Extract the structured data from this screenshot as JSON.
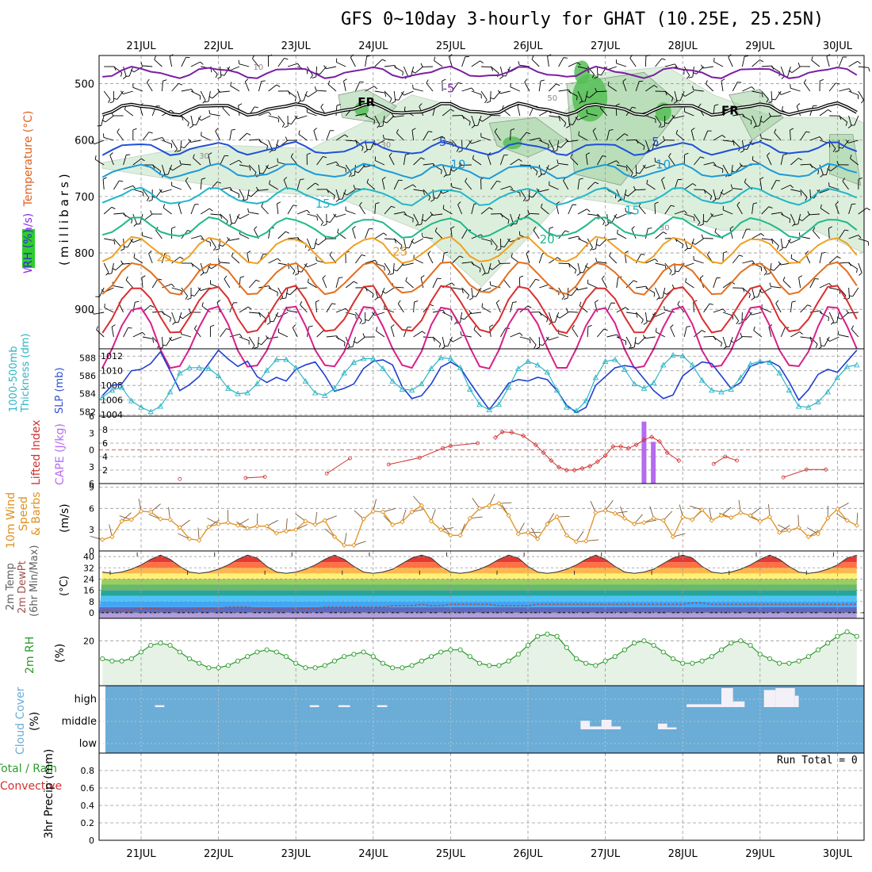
{
  "title": "GFS 0~10day 3-hourly for GHAT (10.25E, 25.25N)",
  "run_total": "Run Total = 0",
  "colors": {
    "rh_fill": "#dcefdc",
    "rh_mid": "#9fcf9f",
    "rh_high": "#55c055",
    "rh_dark": "#2ecc2e",
    "slp": "#1f3fcf",
    "thickness": "#2fb5c5",
    "lifted": "#d23030",
    "cape": "#b56bf0",
    "wind10": "#e09020",
    "temp": "#606060",
    "dew": "#a05050",
    "rh2m": "#2d9a2d",
    "cloud": "#6badd6",
    "grid": "#999999"
  },
  "chart_data": [
    {
      "type": "line",
      "panel": "Upper-air time section",
      "ylabel_lines": [
        "Wind (m/s)",
        "Temperature (°C)",
        "RH (%)",
        "(millibars)"
      ],
      "x_ticks": [
        "21JUL",
        "22JUL",
        "23JUL",
        "24JUL",
        "25JUL",
        "26JUL",
        "27JUL",
        "28JUL",
        "29JUL",
        "30JUL"
      ],
      "y_ticks": [
        500,
        600,
        700,
        800,
        900
      ],
      "ylim": [
        450,
        970
      ],
      "isotherm_labels": [
        {
          "text": "-5",
          "day": 3.9,
          "p": 515
        },
        {
          "text": "FR",
          "day": 2.8,
          "p": 540
        },
        {
          "text": "FR",
          "day": 7.5,
          "p": 555
        },
        {
          "text": "5",
          "day": 3.85,
          "p": 610
        },
        {
          "text": "5",
          "day": 6.6,
          "p": 610
        },
        {
          "text": "10",
          "day": 4.0,
          "p": 650
        },
        {
          "text": "10",
          "day": 6.65,
          "p": 650
        },
        {
          "text": "15",
          "day": 2.25,
          "p": 720
        },
        {
          "text": "15",
          "day": 6.25,
          "p": 732
        },
        {
          "text": "20",
          "day": 5.15,
          "p": 783
        },
        {
          "text": "25",
          "day": 0.2,
          "p": 815
        },
        {
          "text": "25",
          "day": 3.25,
          "p": 805
        }
      ],
      "rh_labels": [
        {
          "text": "10",
          "day": 1.45,
          "p": 475
        },
        {
          "text": "50",
          "day": 5.25,
          "p": 530
        },
        {
          "text": "30",
          "day": 0.75,
          "p": 633
        },
        {
          "text": "30",
          "day": 3.1,
          "p": 613
        },
        {
          "text": "30",
          "day": 6.7,
          "p": 760
        }
      ]
    },
    {
      "type": "line",
      "panel": "Thickness / SLP",
      "ylabel_lines": [
        "1000-500mb",
        "Thickness (dm)",
        "SLP (mb)"
      ],
      "x_ticks": [
        "21JUL",
        "22JUL",
        "23JUL",
        "24JUL",
        "25JUL",
        "26JUL",
        "27JUL",
        "28JUL",
        "29JUL",
        "30JUL"
      ],
      "left_ticks": [
        582,
        584,
        586,
        588
      ],
      "right_ticks": [
        1004,
        1006,
        1008,
        1010,
        1012
      ],
      "left_range": [
        581.5,
        589
      ],
      "right_range": [
        1003.8,
        1013
      ],
      "series": [
        {
          "name": "SLP (mb)",
          "axis": "right",
          "values": [
            1006.6,
            1008,
            1008.2,
            1010,
            1010.2,
            1011,
            1012.6,
            1010,
            1007.3,
            1008.1,
            1009.2,
            1011,
            1012.8,
            1011.6,
            1010.6,
            1011.3,
            1009.2,
            1008.4,
            1009.1,
            1008.6,
            1010.2,
            1010.8,
            1011.2,
            1009.4,
            1007.2,
            1007.6,
            1008.2,
            1010.3,
            1011.3,
            1011.5,
            1010.8,
            1007.8,
            1006.2,
            1006.6,
            1008.2,
            1010.5,
            1011.2,
            1010.4,
            1008.4,
            1006.5,
            1004.7,
            1006.4,
            1008.3,
            1008.8,
            1008.6,
            1009.1,
            1008.8,
            1007.3,
            1005.3,
            1004.3,
            1005,
            1008,
            1009.2,
            1010.4,
            1010.7,
            1010.5,
            1008.9,
            1007.3,
            1006.2,
            1006.7,
            1009.3,
            1010.3,
            1011.2,
            1011,
            1009.3,
            1007.6,
            1008.4,
            1010.6,
            1011.1,
            1011.3,
            1010.6,
            1008.5,
            1006,
            1007.4,
            1009.5,
            1010.2,
            1009.8,
            1011.3,
            1012.8,
            1011.4,
            1008,
            1007.5,
            1009.2
          ]
        },
        {
          "name": "1000-500mb Thickness (dm)",
          "axis": "left",
          "values": [
            583.6,
            584.4,
            584.7,
            583.2,
            582.5,
            582,
            582.6,
            584.2,
            586.3,
            586.9,
            586.9,
            586.8,
            586,
            584.6,
            584,
            584.1,
            585.1,
            586.6,
            587.8,
            587.8,
            586.9,
            585.4,
            584.1,
            583.8,
            584.6,
            586.3,
            587.5,
            587.9,
            587.9,
            586.8,
            585.4,
            584.5,
            584.4,
            585.1,
            586.8,
            588,
            587.9,
            586.9,
            584.5,
            582.8,
            582.2,
            582.8,
            584.7,
            586.8,
            587.6,
            587.2,
            586.4,
            584.4,
            582.5,
            582.1,
            583.2,
            585.8,
            587.6,
            587.8,
            586.7,
            585.1,
            584.6,
            585.2,
            587.2,
            588.3,
            588.2,
            587.2,
            585.5,
            584.4,
            584.2,
            584.5,
            585.8,
            587.3,
            587.6,
            587.5,
            586.3,
            584.4,
            582.6,
            582.5,
            583.1,
            584.2,
            585.8,
            587,
            587.2,
            586.7,
            585,
            583.6,
            583
          ]
        }
      ]
    },
    {
      "type": "line",
      "panel": "CAPE / Lifted Index",
      "ylabel_lines": [
        "Lifted Index",
        "CAPE (J/kg)"
      ],
      "x_ticks": [
        "21JUL",
        "22JUL",
        "23JUL",
        "24JUL",
        "25JUL",
        "26JUL",
        "27JUL",
        "28JUL",
        "29JUL",
        "30JUL"
      ],
      "li_ticks": [
        "6",
        "3",
        "0",
        "3",
        "6"
      ],
      "cape_ticks": [
        2,
        4,
        6,
        8
      ],
      "li_range": [
        6,
        -6
      ],
      "series": [
        {
          "name": "Lifted Index",
          "values": [
            [
              4.58,
              -2.2
            ],
            [
              4.67,
              -3.2
            ],
            [
              4.79,
              -3.1
            ],
            [
              4.94,
              -2.5
            ],
            [
              5.1,
              -0.9
            ],
            [
              5.2,
              0.5
            ],
            [
              5.3,
              1.9
            ],
            [
              5.4,
              3.1
            ],
            [
              5.5,
              3.6
            ],
            [
              5.6,
              3.6
            ],
            [
              5.7,
              3.3
            ],
            [
              5.8,
              2.9
            ],
            [
              5.9,
              2.1
            ],
            [
              6,
              1.0
            ],
            [
              6.1,
              -0.6
            ],
            [
              6.2,
              -0.6
            ],
            [
              6.3,
              -0.3
            ],
            [
              6.4,
              -0.9
            ],
            [
              6.5,
              -1.8
            ],
            [
              6.6,
              -2.3
            ],
            [
              6.7,
              -1.5
            ],
            [
              6.8,
              0.5
            ],
            [
              6.95,
              1.9
            ]
          ]
        }
      ],
      "cape_bars": [
        {
          "day": 6.5,
          "value": 9.2
        },
        {
          "day": 6.62,
          "value": 6.2
        }
      ]
    },
    {
      "type": "line",
      "panel": "10m Wind",
      "ylabel_lines": [
        "10m Wind",
        "Speed",
        "& Barbs",
        "(m/s)"
      ],
      "x_ticks": [
        "21JUL",
        "22JUL",
        "23JUL",
        "24JUL",
        "25JUL",
        "26JUL",
        "27JUL",
        "28JUL",
        "29JUL",
        "30JUL"
      ],
      "y_ticks": [
        0,
        3,
        6,
        9
      ],
      "ylim": [
        0,
        9.5
      ],
      "series": [
        {
          "name": "10m Wind Speed",
          "values": [
            1.6,
            2.0,
            4.2,
            4.4,
            5.6,
            5.5,
            4.5,
            4.4,
            3.3,
            1.7,
            1.5,
            3.4,
            3.8,
            4.0,
            3.6,
            3.2,
            3.5,
            3.5,
            2.5,
            2.8,
            3.0,
            4.2,
            3.7,
            4.3,
            2.0,
            0.8,
            0.8,
            4.5,
            5.6,
            5.5,
            3.7,
            4.1,
            5.5,
            6.4,
            4.2,
            3.0,
            2.2,
            2.2,
            4.6,
            6.0,
            6.4,
            6.7,
            5.0,
            2.4,
            2.6,
            1.7,
            3.8,
            4.8,
            2.2,
            1.3,
            1.4,
            5.4,
            5.7,
            5.3,
            4.6,
            3.8,
            4.0,
            4.6,
            4.3,
            2.0,
            4.8,
            4.4,
            5.8,
            4.3,
            5.0,
            4.7,
            5.4,
            5.0,
            4.2,
            4.8,
            2.6,
            2.9,
            3.3,
            2.0,
            2.4,
            4.6,
            5.9,
            4.3,
            3.6,
            2.8,
            3.9,
            4.7,
            3.6
          ]
        }
      ]
    },
    {
      "type": "area",
      "panel": "2m Temperature",
      "ylabel_lines": [
        "2m Temp",
        "2m DewPt",
        "(6hr Min/Max)",
        "(°C)"
      ],
      "x_ticks": [
        "21JUL",
        "22JUL",
        "23JUL",
        "24JUL",
        "25JUL",
        "26JUL",
        "27JUL",
        "28JUL",
        "29JUL",
        "30JUL"
      ],
      "y_ticks": [
        0,
        8,
        16,
        24,
        32,
        40
      ],
      "ylim": [
        -4,
        44
      ],
      "series": [
        {
          "name": "2m Temp",
          "values": [
            29,
            28,
            29,
            31,
            34,
            38,
            41,
            38,
            33,
            29,
            28,
            29,
            31,
            34,
            38,
            41,
            39,
            33,
            29,
            28,
            29,
            31,
            34,
            38,
            41,
            38,
            33,
            29,
            28,
            29,
            31,
            35,
            39,
            41,
            39,
            33,
            29,
            28,
            29,
            31,
            34,
            38,
            41,
            39,
            33,
            29,
            28,
            29,
            31,
            34,
            38,
            41,
            38,
            33,
            29,
            28,
            29,
            31,
            35,
            39,
            41,
            39,
            33,
            29,
            28,
            29,
            31,
            34,
            38,
            41,
            38,
            33,
            29,
            28,
            29,
            31,
            34,
            39,
            41,
            39,
            33,
            29,
            28
          ]
        },
        {
          "name": "2m DewPt",
          "values": [
            2,
            1,
            1,
            2,
            3,
            3,
            3,
            2,
            2,
            2,
            3,
            3,
            3,
            4,
            4,
            4,
            3,
            3,
            2,
            2,
            3,
            3,
            3,
            4,
            4,
            4,
            4,
            4,
            4,
            4,
            5,
            5,
            5,
            6,
            5,
            5,
            6,
            6,
            6,
            6,
            6,
            5,
            5,
            5,
            5,
            6,
            6,
            6,
            6,
            6,
            6,
            6,
            6,
            6,
            6,
            6,
            6,
            6,
            6,
            6,
            6,
            7,
            7,
            6,
            6,
            6,
            6,
            6,
            6,
            6,
            6,
            6,
            6,
            6,
            6,
            6,
            6,
            6,
            6,
            6,
            6,
            6,
            6
          ]
        }
      ]
    },
    {
      "type": "area",
      "panel": "2m RH",
      "ylabel_lines": [
        "2m RH",
        "(%)"
      ],
      "x_ticks": [
        "21JUL",
        "22JUL",
        "23JUL",
        "24JUL",
        "25JUL",
        "26JUL",
        "27JUL",
        "28JUL",
        "29JUL",
        "30JUL"
      ],
      "y_ticks": [
        20
      ],
      "ylim": [
        0,
        30
      ],
      "series": [
        {
          "name": "2m RH",
          "values": [
            12,
            11,
            11,
            12,
            15,
            18,
            19,
            18,
            15,
            12,
            10,
            8,
            8,
            9,
            11,
            13,
            15,
            16,
            15,
            13,
            10,
            8,
            8,
            9,
            11,
            13,
            14,
            15,
            13,
            10,
            8,
            8,
            9,
            11,
            13,
            15,
            16,
            16,
            13,
            10,
            9,
            9,
            11,
            14,
            18,
            22,
            23,
            22,
            17,
            12,
            10,
            9,
            11,
            13,
            16,
            19,
            20,
            18,
            15,
            12,
            10,
            10,
            11,
            13,
            16,
            19,
            20,
            18,
            14,
            12,
            10,
            10,
            11,
            13,
            16,
            19,
            22,
            24,
            22,
            18,
            14,
            11,
            10,
            12,
            16,
            21,
            23,
            22
          ]
        }
      ]
    },
    {
      "type": "bar",
      "panel": "Cloud Cover",
      "ylabel_lines": [
        "Cloud Cover",
        "(%)"
      ],
      "x_ticks": [
        "21JUL",
        "22JUL",
        "23JUL",
        "24JUL",
        "25JUL",
        "26JUL",
        "27JUL",
        "28JUL",
        "29JUL",
        "30JUL"
      ],
      "levels": [
        "high",
        "middle",
        "low"
      ],
      "high": [
        [
          0.18,
          0.3,
          10
        ],
        [
          2.18,
          2.3,
          10
        ],
        [
          2.55,
          2.7,
          10
        ],
        [
          3.05,
          3.18,
          10
        ],
        [
          7.05,
          7.5,
          15
        ],
        [
          7.5,
          7.65,
          100
        ],
        [
          7.65,
          7.8,
          30
        ],
        [
          8.05,
          8.2,
          90
        ],
        [
          8.2,
          8.45,
          100
        ],
        [
          8.45,
          8.5,
          60
        ]
      ],
      "middle": [
        [
          5.68,
          5.8,
          45
        ],
        [
          5.8,
          5.95,
          15
        ],
        [
          5.95,
          6.08,
          50
        ],
        [
          6.08,
          6.2,
          15
        ],
        [
          6.68,
          6.8,
          30
        ],
        [
          6.8,
          6.92,
          10
        ]
      ],
      "low": []
    },
    {
      "type": "bar",
      "panel": "3hr Precip",
      "ylabel_lines": [
        "Total / Rain",
        "Convective",
        "3hr Precip (mm)"
      ],
      "x_ticks": [
        "21JUL",
        "22JUL",
        "23JUL",
        "24JUL",
        "25JUL",
        "26JUL",
        "27JUL",
        "28JUL",
        "29JUL",
        "30JUL"
      ],
      "y_ticks": [
        0,
        0.2,
        0.4,
        0.6,
        0.8
      ],
      "ylim": [
        0,
        1.0
      ],
      "values": []
    }
  ]
}
